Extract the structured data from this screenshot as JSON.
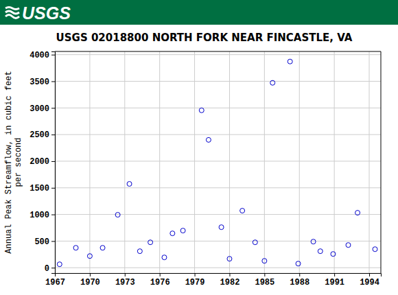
{
  "header": {
    "logo": "USGS"
  },
  "chart_data": {
    "type": "scatter",
    "title": "USGS 02018800 NORTH FORK NEAR FINCASTLE, VA",
    "ylabel": [
      "Annual Peak Streamflow, in cubic feet",
      "per second"
    ],
    "x": [
      1967.4,
      1968.8,
      1970.0,
      1971.1,
      1972.4,
      1973.4,
      1974.3,
      1975.2,
      1976.4,
      1977.1,
      1978.0,
      1979.6,
      1980.2,
      1981.3,
      1982.0,
      1983.1,
      1984.2,
      1985.0,
      1985.7,
      1987.2,
      1987.9,
      1989.2,
      1989.8,
      1990.9,
      1992.2,
      1993.0,
      1994.5
    ],
    "values": [
      65,
      374,
      219,
      374,
      994,
      1574,
      310,
      477,
      194,
      645,
      697,
      2955,
      2400,
      761,
      168,
      1071,
      477,
      129,
      3471,
      3871,
      77,
      490,
      310,
      258,
      426,
      1032,
      348
    ],
    "color": "#0000cc",
    "marker": "open-circle",
    "grid": true,
    "xlim": [
      1967,
      1995
    ],
    "xticks": [
      1967,
      1970,
      1973,
      1976,
      1979,
      1982,
      1985,
      1988,
      1991,
      1994
    ],
    "ylim": [
      -100,
      4060
    ],
    "yticks": [
      0,
      500,
      1000,
      1500,
      2000,
      2500,
      3000,
      3500,
      4000
    ]
  }
}
